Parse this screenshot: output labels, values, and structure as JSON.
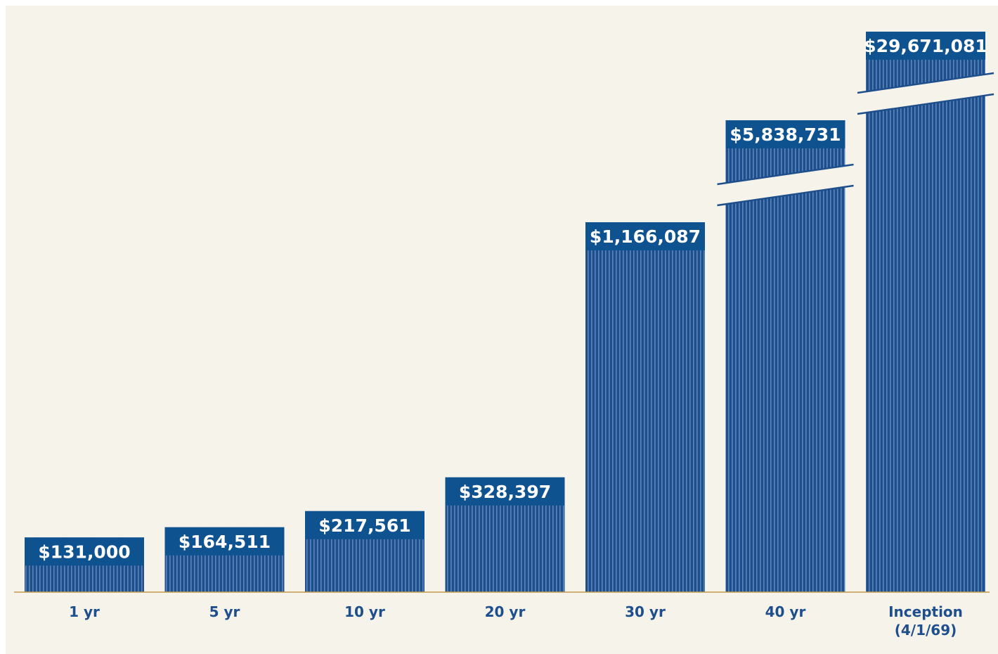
{
  "chart_data": {
    "type": "bar",
    "categories": [
      "1 yr",
      "5 yr",
      "10 yr",
      "20 yr",
      "30 yr",
      "40 yr",
      "Inception (4/1/69)"
    ],
    "tick_lines": [
      [
        "1 yr"
      ],
      [
        "5 yr"
      ],
      [
        "10 yr"
      ],
      [
        "20 yr"
      ],
      [
        "30 yr"
      ],
      [
        "40 yr"
      ],
      [
        "Inception",
        "(4/1/69)"
      ]
    ],
    "values": [
      131000,
      164511,
      217561,
      328397,
      1166087,
      5838731,
      29671081
    ],
    "value_labels": [
      "$131,000",
      "$164,511",
      "$217,561",
      "$328,397",
      "$1,166,087",
      "$5,838,731",
      "$29,671,081"
    ],
    "broken_bars": [
      "40 yr",
      "Inception (4/1/69)"
    ],
    "title": "",
    "xlabel": "",
    "ylabel": "",
    "grid": false,
    "legend": "none",
    "colors": {
      "bar": "#1e4f8c",
      "bar_stripe": "#5a86bb",
      "label_box": "#0e5290",
      "tick_text": "#1e4f8c",
      "baseline": "#c39a4a",
      "background": "#f5f3ea"
    }
  }
}
